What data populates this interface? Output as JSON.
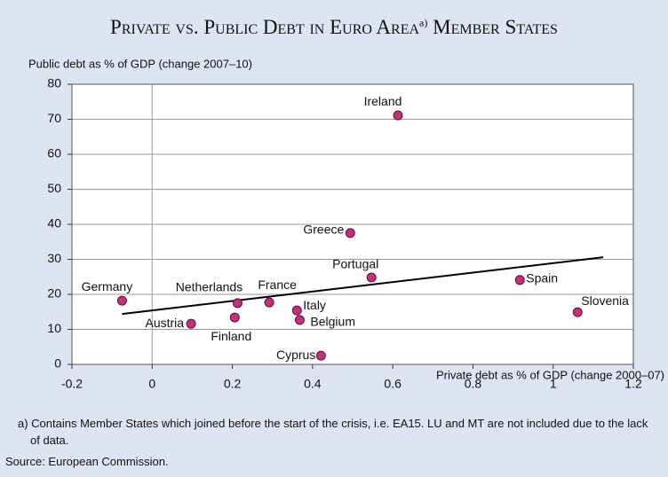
{
  "title": "Private vs. Public Debt in Euro Area",
  "title_note": "a)",
  "title_end": "Member States",
  "chart_data": {
    "type": "scatter",
    "y_label": "Public debt as % of GDP (change 2007–10)",
    "x_label": "Private debt as % of GDP (change 2000–07)",
    "labels": [
      "Germany",
      "Austria",
      "Finland",
      "Netherlands",
      "France",
      "Italy",
      "Belgium",
      "Cyprus",
      "Greece",
      "Portugal",
      "Ireland",
      "Spain",
      "Slovenia"
    ],
    "x": [
      -0.075,
      0.097,
      0.206,
      0.213,
      0.292,
      0.361,
      0.368,
      0.421,
      0.494,
      0.547,
      0.613,
      0.917,
      1.061
    ],
    "values": [
      18.2,
      11.6,
      13.4,
      17.5,
      17.7,
      15.4,
      12.7,
      2.5,
      37.5,
      24.8,
      71.1,
      24.1,
      14.9
    ],
    "color": "#c4307c",
    "trendline": {
      "x": [
        -0.075,
        1.125
      ],
      "y": [
        14.4,
        30.6
      ],
      "color": "#000000"
    },
    "xlim": [
      -0.2,
      1.2
    ],
    "xticks": [
      -0.2,
      0,
      0.2,
      0.4,
      0.6,
      0.8,
      1,
      1.2
    ],
    "ylim": [
      0,
      80
    ],
    "yticks": [
      0,
      10,
      20,
      30,
      40,
      50,
      60,
      70,
      80
    ],
    "grid": true
  },
  "footnote": "a) Contains Member States which joined before the start of the crisis, i.e. EA15. LU and MT are not included due to the lack of data.",
  "source": "Source: European Commission."
}
